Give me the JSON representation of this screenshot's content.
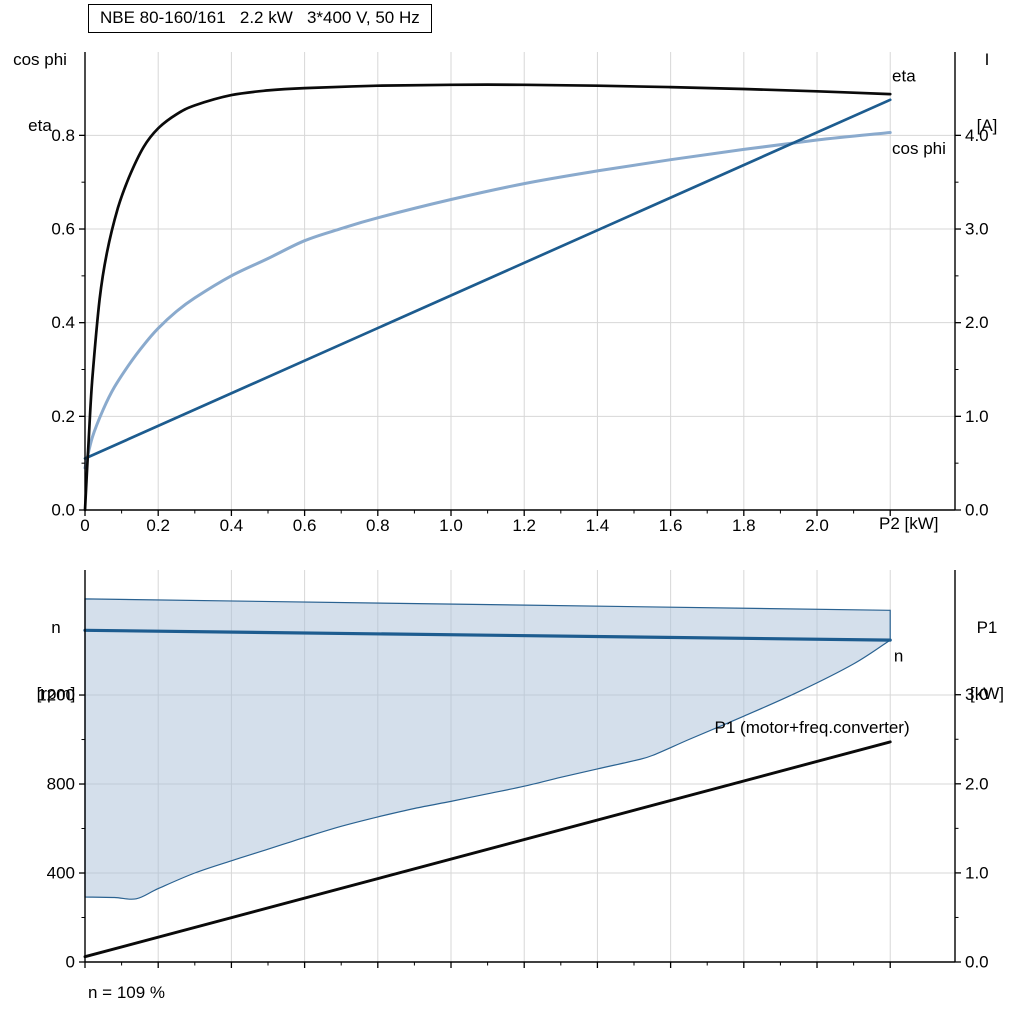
{
  "page": {
    "background": "#ffffff"
  },
  "colors": {
    "eta": "#0a0a0a",
    "cos_phi": "#8aaacd",
    "current": "#1d5c8f",
    "n": "#1d5c8f",
    "p1": "#0a0a0a",
    "band_fill": "#a9c0d8",
    "band_edge": "#2a6291",
    "grid": "#d7d7d7",
    "axis": "#000000"
  },
  "layout_labels": {
    "top_left": {
      "line1": "cos phi",
      "line2": "eta"
    },
    "top_right": {
      "line1": "I",
      "line2": "[A]"
    },
    "mid_left": {
      "line1": "n",
      "line2": "[rpm]"
    },
    "mid_right": {
      "line1": "P1",
      "line2": "[kW]"
    }
  },
  "chart_data": [
    {
      "type": "line",
      "name": "motor-electrical-curves",
      "title": "NBE 80-160/161   2.2 kW   3*400 V, 50 Hz",
      "xlabel": "P2 [kW]",
      "x_range": [
        0,
        2.377
      ],
      "x_ticks": [
        0,
        0.2,
        0.4,
        0.6,
        0.8,
        1.0,
        1.2,
        1.4,
        1.6,
        1.8,
        2.0
      ],
      "x_tick_labels": [
        "0",
        "0.2",
        "0.4",
        "0.6",
        "0.8",
        "1.0",
        "1.2",
        "1.4",
        "1.6",
        "1.8",
        "2.0"
      ],
      "x_grid": [
        0.2,
        0.4,
        0.6,
        0.8,
        1.0,
        1.2,
        1.4,
        1.6,
        1.8,
        2.0,
        2.2
      ],
      "left_axis": {
        "title": "cos phi / eta",
        "range": [
          0,
          0.978
        ],
        "ticks": [
          0,
          0.2,
          0.4,
          0.6,
          0.8
        ],
        "tick_labels": [
          "0.0",
          "0.2",
          "0.4",
          "0.6",
          "0.8"
        ]
      },
      "right_axis": {
        "title": "I [A]",
        "range": [
          0,
          4.89
        ],
        "ticks": [
          0,
          1,
          2,
          3,
          4
        ],
        "tick_labels": [
          "0.0",
          "1.0",
          "2.0",
          "3.0",
          "4.0"
        ]
      },
      "series": [
        {
          "name": "cos-phi",
          "axis": "left",
          "color": "cos_phi",
          "width": 3,
          "smooth": true,
          "points": [
            [
              0,
              0.09
            ],
            [
              0.02,
              0.155
            ],
            [
              0.05,
              0.215
            ],
            [
              0.08,
              0.262
            ],
            [
              0.12,
              0.31
            ],
            [
              0.16,
              0.352
            ],
            [
              0.2,
              0.388
            ],
            [
              0.25,
              0.424
            ],
            [
              0.3,
              0.453
            ],
            [
              0.4,
              0.5
            ],
            [
              0.5,
              0.537
            ],
            [
              0.6,
              0.575
            ],
            [
              0.7,
              0.601
            ],
            [
              0.8,
              0.624
            ],
            [
              1.0,
              0.663
            ],
            [
              1.2,
              0.697
            ],
            [
              1.4,
              0.724
            ],
            [
              1.6,
              0.748
            ],
            [
              1.8,
              0.77
            ],
            [
              2.0,
              0.79
            ],
            [
              2.2,
              0.806
            ]
          ],
          "label": {
            "text": "cos phi",
            "x": 2.205,
            "y": 0.76,
            "anchor": "start",
            "color": "cos_phi"
          }
        },
        {
          "name": "current",
          "axis": "right",
          "color": "current",
          "width": 2.7,
          "smooth": false,
          "points": [
            [
              0,
              0.55
            ],
            [
              2.2,
              4.38
            ]
          ]
        },
        {
          "name": "eta",
          "axis": "left",
          "color": "eta",
          "width": 2.7,
          "smooth": true,
          "points": [
            [
              0,
              0
            ],
            [
              0.01,
              0.15
            ],
            [
              0.02,
              0.28
            ],
            [
              0.04,
              0.45
            ],
            [
              0.06,
              0.55
            ],
            [
              0.09,
              0.645
            ],
            [
              0.12,
              0.71
            ],
            [
              0.16,
              0.775
            ],
            [
              0.2,
              0.815
            ],
            [
              0.25,
              0.845
            ],
            [
              0.3,
              0.864
            ],
            [
              0.4,
              0.886
            ],
            [
              0.5,
              0.896
            ],
            [
              0.6,
              0.901
            ],
            [
              0.8,
              0.906
            ],
            [
              1.0,
              0.908
            ],
            [
              1.2,
              0.908
            ],
            [
              1.4,
              0.906
            ],
            [
              1.6,
              0.903
            ],
            [
              1.8,
              0.899
            ],
            [
              2.0,
              0.894
            ],
            [
              2.2,
              0.888
            ]
          ],
          "label": {
            "text": "eta",
            "x": 2.205,
            "y": 0.915,
            "anchor": "start",
            "color": "eta"
          }
        }
      ]
    },
    {
      "type": "line",
      "name": "speed-and-input-power-curves",
      "annotation": "n = 109 %",
      "x_range": [
        0,
        2.377
      ],
      "x_ticks": [
        0,
        0.2,
        0.4,
        0.6,
        0.8,
        1.0,
        1.2,
        1.4,
        1.6,
        1.8,
        2.0,
        2.2
      ],
      "x_tick_labels": [],
      "x_grid": [
        0.2,
        0.4,
        0.6,
        0.8,
        1.0,
        1.2,
        1.4,
        1.6,
        1.8,
        2.0,
        2.2
      ],
      "left_axis": {
        "title": "n [rpm]",
        "range": [
          0,
          1762
        ],
        "ticks": [
          0,
          400,
          800,
          1200
        ],
        "tick_labels": [
          "0",
          "400",
          "800",
          "1200"
        ]
      },
      "right_axis": {
        "title": "P1 [kW]",
        "range": [
          0,
          4.4
        ],
        "ticks": [
          0,
          1,
          2,
          3
        ],
        "tick_labels": [
          "0.0",
          "1.0",
          "2.0",
          "3.0"
        ]
      },
      "series": [
        {
          "name": "speed-range-band",
          "type": "band",
          "axis": "left",
          "fill": "band_fill",
          "stroke": "band_edge",
          "smooth": true,
          "upper": [
            [
              0,
              1632
            ],
            [
              2.2,
              1581
            ]
          ],
          "lower": [
            [
              0,
              292
            ],
            [
              0.08,
              290
            ],
            [
              0.14,
              284
            ],
            [
              0.2,
              330
            ],
            [
              0.3,
              400
            ],
            [
              0.4,
              455
            ],
            [
              0.5,
              507
            ],
            [
              0.6,
              560
            ],
            [
              0.7,
              610
            ],
            [
              0.8,
              652
            ],
            [
              0.9,
              690
            ],
            [
              1.0,
              722
            ],
            [
              1.1,
              756
            ],
            [
              1.2,
              790
            ],
            [
              1.3,
              830
            ],
            [
              1.4,
              868
            ],
            [
              1.5,
              905
            ],
            [
              1.55,
              928
            ],
            [
              1.65,
              1000
            ],
            [
              1.8,
              1105
            ],
            [
              1.95,
              1215
            ],
            [
              2.1,
              1340
            ],
            [
              2.2,
              1447
            ]
          ]
        },
        {
          "name": "n",
          "axis": "left",
          "color": "n",
          "width": 3.2,
          "smooth": false,
          "points": [
            [
              0,
              1491
            ],
            [
              1.1,
              1469
            ],
            [
              2.2,
              1447
            ]
          ],
          "label": {
            "text": "n",
            "x": 2.21,
            "y": 1350,
            "anchor": "start",
            "color": "n"
          }
        },
        {
          "name": "p1",
          "axis": "right",
          "color": "p1",
          "width": 2.9,
          "smooth": false,
          "points": [
            [
              0,
              0.06
            ],
            [
              2.2,
              2.47
            ]
          ],
          "label": {
            "text": "P1 (motor+freq.converter)",
            "x": 1.72,
            "y": 2.57,
            "anchor": "start",
            "color": "p1"
          }
        }
      ]
    }
  ]
}
